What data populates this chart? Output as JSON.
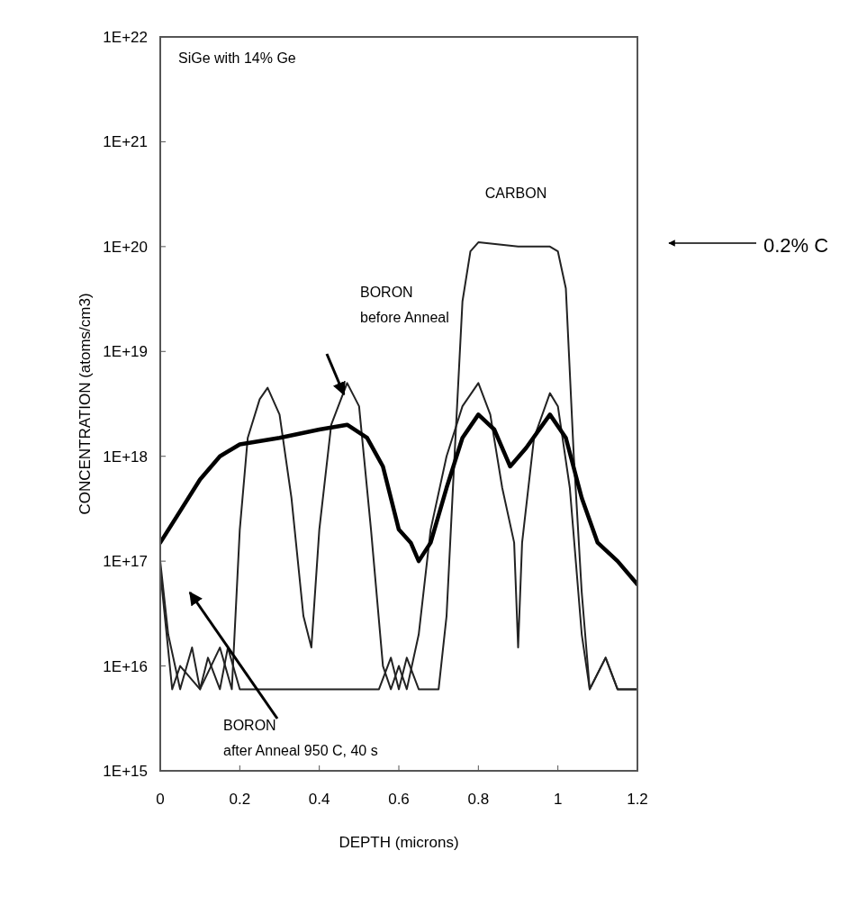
{
  "chart_data": {
    "type": "line",
    "xlabel": "DEPTH (microns)",
    "ylabel": "CONCENTRATION (atoms/cm3)",
    "log": "y",
    "xlim": [
      0,
      1.2
    ],
    "xticks": [
      0,
      0.2,
      0.4,
      0.6,
      0.8,
      1,
      1.2
    ],
    "ylim": [
      1000000000000000.0,
      1e+22
    ],
    "yticks": [
      {
        "value": 1000000000000000.0,
        "label": "1E+15"
      },
      {
        "value": 1e+16,
        "label": "1E+16"
      },
      {
        "value": 1e+17,
        "label": "1E+17"
      },
      {
        "value": 1e+18,
        "label": "1E+18"
      },
      {
        "value": 1e+19,
        "label": "1E+19"
      },
      {
        "value": 1e+20,
        "label": "1E+20"
      },
      {
        "value": 1e+21,
        "label": "1E+21"
      },
      {
        "value": 1e+22,
        "label": "1E+22"
      }
    ],
    "grid": false,
    "line_style": "solid",
    "annotations": [
      "SiGe with 14% Ge",
      "CARBON",
      "BORON\nbefore Anneal",
      "BORON\nafter Anneal 950 C, 40 s",
      "0.2% C"
    ],
    "series": [
      {
        "color": "#222222",
        "x": [
          0,
          0.02,
          0.05,
          0.08,
          0.1,
          0.12,
          0.15,
          0.17,
          0.2,
          0.3,
          0.4,
          0.5,
          0.55,
          0.58,
          0.6,
          0.62,
          0.65,
          0.7,
          0.72,
          0.74,
          0.76,
          0.78,
          0.8,
          0.9,
          0.98,
          1.0,
          1.02,
          1.04,
          1.06,
          1.08,
          1.12,
          1.15,
          1.2
        ],
        "values": [
          1e+17,
          2e+16,
          6000000000000000.0,
          1.5e+16,
          6000000000000000.0,
          1.2e+16,
          6000000000000000.0,
          1.5e+16,
          6000000000000000.0,
          6000000000000000.0,
          6000000000000000.0,
          6000000000000000.0,
          6000000000000000.0,
          1.2e+16,
          6000000000000000.0,
          1.2e+16,
          6000000000000000.0,
          6000000000000000.0,
          3e+16,
          1e+18,
          3e+19,
          9e+19,
          1.1e+20,
          1e+20,
          1e+20,
          9e+19,
          4e+19,
          1e+18,
          5e+16,
          6000000000000000.0,
          1.2e+16,
          6000000000000000.0,
          6000000000000000.0
        ]
      },
      {
        "color": "#222222",
        "x": [
          0,
          0.03,
          0.05,
          0.1,
          0.15,
          0.18,
          0.2,
          0.22,
          0.25,
          0.27,
          0.3,
          0.33,
          0.36,
          0.38,
          0.4,
          0.43,
          0.47,
          0.5,
          0.53,
          0.56,
          0.58,
          0.6,
          0.62,
          0.65,
          0.68,
          0.72,
          0.76,
          0.8,
          0.83,
          0.86,
          0.89,
          0.9,
          0.91,
          0.94,
          0.98,
          1.0,
          1.03,
          1.06,
          1.08,
          1.12,
          1.15,
          1.2
        ],
        "values": [
          8e+16,
          6000000000000000.0,
          1e+16,
          6000000000000000.0,
          1.5e+16,
          6000000000000000.0,
          2e+17,
          1.5e+18,
          3.5e+18,
          4.5e+18,
          2.5e+18,
          4e+17,
          3e+16,
          1.5e+16,
          2e+17,
          2e+18,
          5e+18,
          3e+18,
          2e+17,
          1e+16,
          6000000000000000.0,
          1e+16,
          6000000000000000.0,
          2e+16,
          2e+17,
          1e+18,
          3e+18,
          5e+18,
          2.5e+18,
          5e+17,
          1.5e+17,
          1.5e+16,
          1.5e+17,
          1.5e+18,
          4e+18,
          3e+18,
          5e+17,
          2e+16,
          6000000000000000.0,
          1.2e+16,
          6000000000000000.0,
          6000000000000000.0
        ]
      },
      {
        "color": "#000000",
        "x": [
          0,
          0.05,
          0.1,
          0.15,
          0.2,
          0.3,
          0.4,
          0.47,
          0.52,
          0.56,
          0.6,
          0.63,
          0.65,
          0.68,
          0.72,
          0.76,
          0.8,
          0.84,
          0.88,
          0.92,
          0.98,
          1.02,
          1.06,
          1.1,
          1.15,
          1.2
        ],
        "values": [
          1.5e+17,
          3e+17,
          6e+17,
          1e+18,
          1.3e+18,
          1.5e+18,
          1.8e+18,
          2e+18,
          1.5e+18,
          8e+17,
          2e+17,
          1.5e+17,
          1e+17,
          1.5e+17,
          5e+17,
          1.5e+18,
          2.5e+18,
          1.8e+18,
          8e+17,
          1.2e+18,
          2.5e+18,
          1.5e+18,
          4e+17,
          1.5e+17,
          1e+17,
          6e+16
        ]
      }
    ]
  }
}
